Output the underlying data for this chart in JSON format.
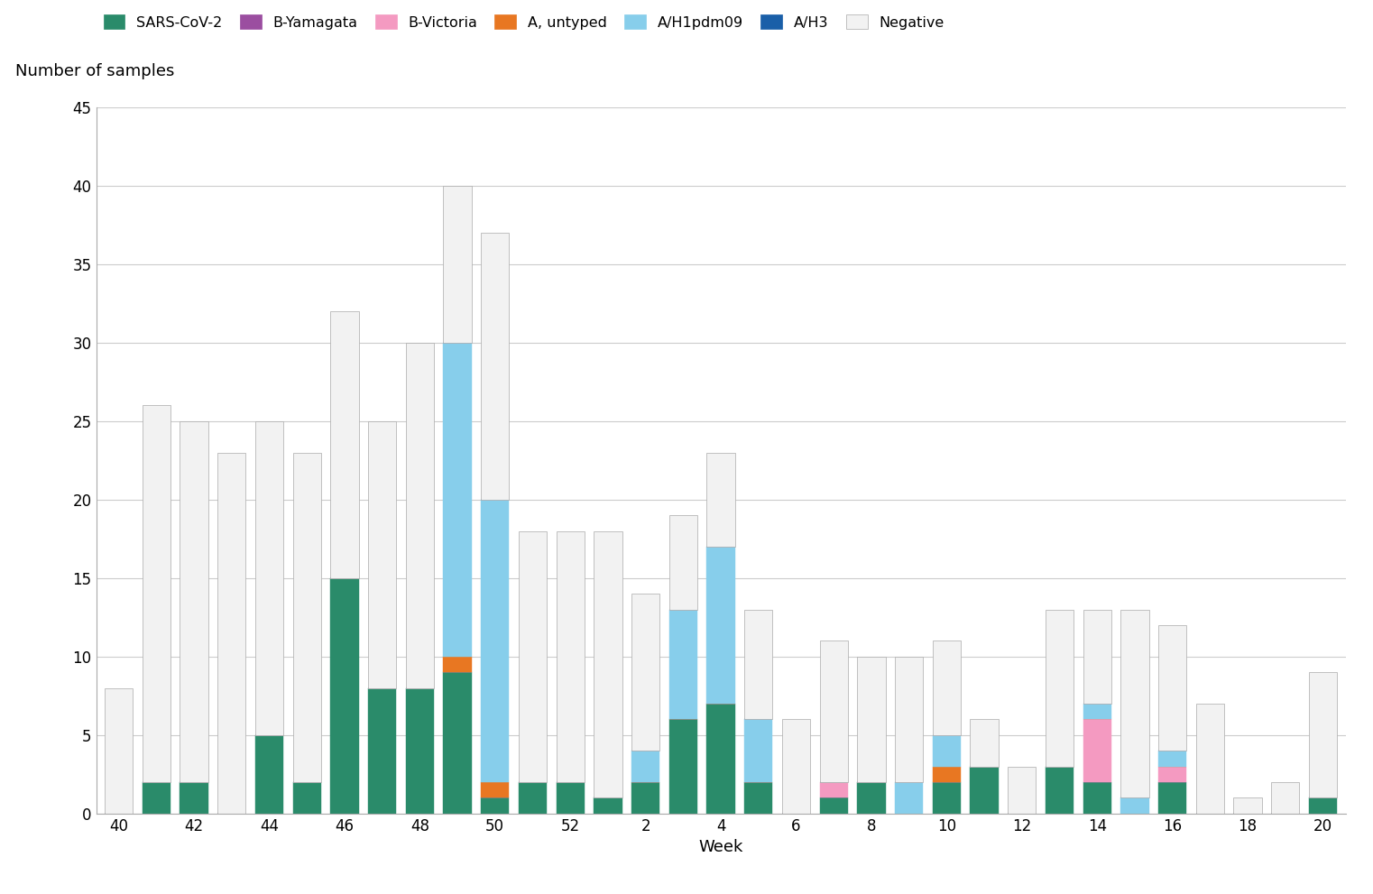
{
  "weeks": [
    40,
    41,
    42,
    43,
    44,
    45,
    46,
    47,
    48,
    49,
    50,
    51,
    52,
    1,
    2,
    3,
    4,
    5,
    6,
    7,
    8,
    9,
    10,
    11,
    12,
    13,
    14,
    15,
    16,
    17,
    18,
    19,
    20
  ],
  "x_tick_labels": [
    "40",
    "",
    "42",
    "",
    "44",
    "",
    "46",
    "",
    "48",
    "",
    "50",
    "",
    "52",
    "",
    "2",
    "",
    "4",
    "",
    "6",
    "",
    "8",
    "",
    "10",
    "",
    "12",
    "",
    "14",
    "",
    "16",
    "",
    "18",
    "",
    "20"
  ],
  "SARS_CoV_2": [
    0,
    2,
    2,
    0,
    5,
    2,
    15,
    8,
    8,
    9,
    1,
    2,
    2,
    1,
    2,
    6,
    7,
    2,
    0,
    1,
    2,
    0,
    2,
    3,
    0,
    3,
    2,
    0,
    2,
    0,
    0,
    0,
    1
  ],
  "B_Yamagata": [
    0,
    0,
    0,
    0,
    0,
    0,
    0,
    0,
    0,
    0,
    0,
    0,
    0,
    0,
    0,
    0,
    0,
    0,
    0,
    0,
    0,
    0,
    0,
    0,
    0,
    0,
    0,
    0,
    0,
    0,
    0,
    0,
    0
  ],
  "B_Victoria": [
    0,
    0,
    0,
    0,
    0,
    0,
    0,
    0,
    0,
    0,
    0,
    0,
    0,
    0,
    0,
    0,
    0,
    0,
    0,
    1,
    0,
    0,
    0,
    0,
    0,
    0,
    4,
    0,
    1,
    0,
    0,
    0,
    0
  ],
  "A_untyped": [
    0,
    0,
    0,
    0,
    0,
    0,
    0,
    0,
    0,
    1,
    1,
    0,
    0,
    0,
    0,
    0,
    0,
    0,
    0,
    0,
    0,
    0,
    1,
    0,
    0,
    0,
    0,
    0,
    0,
    0,
    0,
    0,
    0
  ],
  "AH1pdm09": [
    0,
    0,
    0,
    0,
    0,
    0,
    0,
    0,
    0,
    20,
    18,
    0,
    0,
    0,
    2,
    7,
    10,
    4,
    0,
    0,
    0,
    2,
    2,
    0,
    0,
    0,
    1,
    1,
    1,
    0,
    0,
    0,
    0
  ],
  "AH3": [
    0,
    0,
    0,
    0,
    0,
    0,
    0,
    0,
    0,
    0,
    0,
    0,
    0,
    0,
    0,
    0,
    0,
    0,
    0,
    0,
    0,
    0,
    0,
    0,
    0,
    0,
    0,
    0,
    0,
    0,
    0,
    0,
    0
  ],
  "Negative": [
    8,
    24,
    23,
    23,
    20,
    21,
    17,
    17,
    22,
    10,
    17,
    16,
    16,
    17,
    10,
    6,
    6,
    7,
    6,
    9,
    8,
    8,
    6,
    3,
    3,
    10,
    6,
    12,
    8,
    7,
    1,
    2,
    8
  ],
  "colors": {
    "SARS_CoV_2": "#2a8b6a",
    "B_Yamagata": "#9b4ea0",
    "B_Victoria": "#f49ac1",
    "A_untyped": "#e87722",
    "AH1pdm09": "#87ceeb",
    "AH3": "#1a5fa8",
    "Negative": "#f2f2f2"
  },
  "title": "Number of samples",
  "xlabel": "Week",
  "ylim": [
    0,
    45
  ],
  "yticks": [
    0,
    5,
    10,
    15,
    20,
    25,
    30,
    35,
    40,
    45
  ],
  "legend_labels": [
    "SARS-CoV-2",
    "B-Yamagata",
    "B-Victoria",
    "A, untyped",
    "A/H1pdm09",
    "A/H3",
    "Negative"
  ],
  "legend_colors": [
    "#2a8b6a",
    "#9b4ea0",
    "#f49ac1",
    "#e87722",
    "#87ceeb",
    "#1a5fa8",
    "#f2f2f2"
  ]
}
